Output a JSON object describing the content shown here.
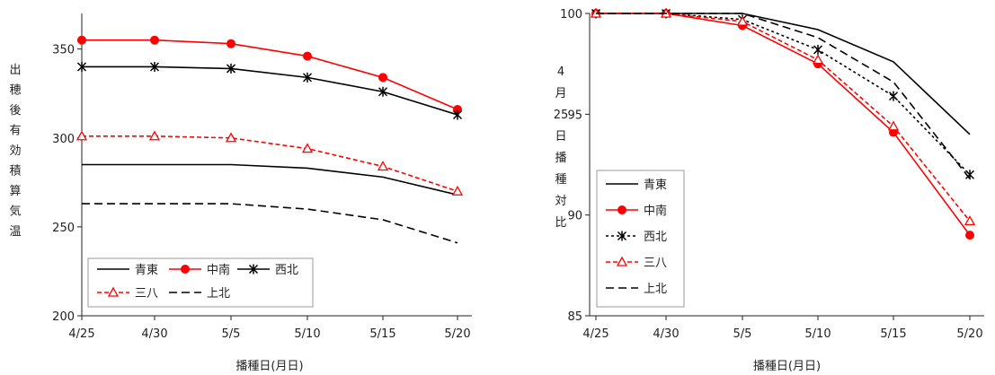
{
  "chart_data": [
    {
      "type": "line",
      "title": "",
      "xlabel": "播種日(月日)",
      "ylabel": "出穂後有効積算気温",
      "categories": [
        "4/25",
        "4/30",
        "5/5",
        "5/10",
        "5/15",
        "5/20"
      ],
      "yticks": [
        "200",
        "250",
        "300",
        "350"
      ],
      "ylim": [
        200,
        370
      ],
      "grid": false,
      "legend_position": "bottom-left",
      "series": [
        {
          "name": "青東",
          "values": [
            285,
            285,
            285,
            283,
            278,
            268
          ],
          "color": "#000000",
          "dash": "solid",
          "marker": "none"
        },
        {
          "name": "中南",
          "values": [
            355,
            355,
            353,
            346,
            334,
            316
          ],
          "color": "#ff0000",
          "dash": "solid",
          "marker": "circle"
        },
        {
          "name": "西北",
          "values": [
            340,
            340,
            339,
            334,
            326,
            313
          ],
          "color": "#000000",
          "dash": "solid",
          "marker": "star"
        },
        {
          "name": "三八",
          "values": [
            301,
            301,
            300,
            294,
            284,
            270
          ],
          "color": "#ff0000",
          "dash": "dashed",
          "marker": "triangle"
        },
        {
          "name": "上北",
          "values": [
            263,
            263,
            263,
            260,
            254,
            241
          ],
          "color": "#000000",
          "dash": "longdash",
          "marker": "none"
        }
      ]
    },
    {
      "type": "line",
      "title": "",
      "xlabel": "播種日(月日)",
      "ylabel": "4月25日播種対比",
      "categories": [
        "4/25",
        "4/30",
        "5/5",
        "5/10",
        "5/15",
        "5/20"
      ],
      "yticks": [
        "85",
        "90",
        "95",
        "100"
      ],
      "ylim": [
        85,
        100
      ],
      "grid": false,
      "legend_position": "bottom-left",
      "series": [
        {
          "name": "青東",
          "values": [
            100,
            100,
            100,
            99.2,
            97.6,
            94.0
          ],
          "color": "#000000",
          "dash": "solid",
          "marker": "none"
        },
        {
          "name": "中南",
          "values": [
            100,
            100,
            99.4,
            97.5,
            94.1,
            89.0
          ],
          "color": "#ff0000",
          "dash": "solid",
          "marker": "circle"
        },
        {
          "name": "西北",
          "values": [
            100,
            100,
            99.7,
            98.2,
            95.9,
            92.0
          ],
          "color": "#000000",
          "dash": "dotted",
          "marker": "star"
        },
        {
          "name": "三八",
          "values": [
            100,
            100,
            99.6,
            97.7,
            94.4,
            89.7
          ],
          "color": "#ff0000",
          "dash": "dashed",
          "marker": "triangle"
        },
        {
          "name": "上北",
          "values": [
            100,
            100,
            100,
            98.8,
            96.6,
            91.8
          ],
          "color": "#000000",
          "dash": "longdash",
          "marker": "none"
        }
      ]
    }
  ]
}
